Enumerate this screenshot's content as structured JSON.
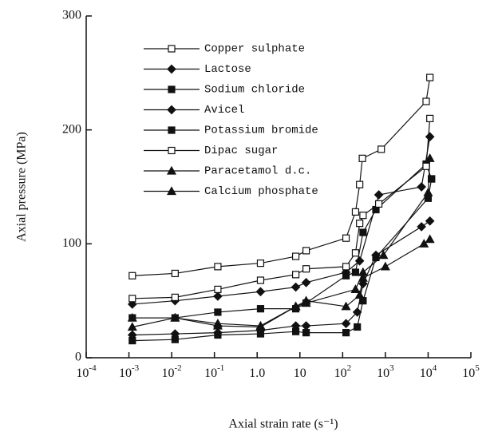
{
  "chart_data": {
    "type": "line",
    "x_label": "Axial strain rate  (s⁻¹)",
    "y_label": "Axial pressure (MPa)",
    "xscale": "log",
    "xlim": [
      0.0001,
      100000
    ],
    "xticks": [
      {
        "value": 0.0001,
        "label": "10",
        "exponent": "-4"
      },
      {
        "value": 0.001,
        "label": "10",
        "exponent": "-3"
      },
      {
        "value": 0.01,
        "label": "10",
        "exponent": "-2"
      },
      {
        "value": 0.1,
        "label": "10",
        "exponent": "-1"
      },
      {
        "value": 1,
        "label": "1.0"
      },
      10,
      {
        "value": 100,
        "label": "10",
        "exponent": "2"
      },
      {
        "value": 1000,
        "label": "10",
        "exponent": "3"
      },
      {
        "value": 10000,
        "label": "10",
        "exponent": "4"
      },
      {
        "value": 100000,
        "label": "10",
        "exponent": "5"
      }
    ],
    "ylim": [
      0,
      300
    ],
    "yticks": [
      0,
      100,
      200,
      300
    ],
    "legend": "upper left",
    "series": [
      {
        "name": "Copper sulphate",
        "color": "#111111",
        "marker": "open-square",
        "x": [
          0.0012,
          0.012,
          0.12,
          1.2,
          8,
          14,
          120,
          200,
          250,
          290,
          800,
          9000,
          11000
        ],
        "values": [
          72,
          74,
          80,
          83,
          89,
          94,
          105,
          128,
          152,
          175,
          183,
          225,
          246
        ]
      },
      {
        "name": "Lactose",
        "color": "#111111",
        "marker": "diamond",
        "x": [
          0.0012,
          0.012,
          0.12,
          1.2,
          8,
          14,
          120,
          250,
          700,
          7000,
          11000
        ],
        "values": [
          47,
          50,
          54,
          58,
          62,
          66,
          75,
          85,
          143,
          150,
          194
        ]
      },
      {
        "name": "Sodium chloride",
        "color": "#111111",
        "marker": "square",
        "x": [
          0.0012,
          0.012,
          0.12,
          1.2,
          8,
          14,
          120,
          200,
          300,
          600,
          9000,
          12000
        ],
        "values": [
          35,
          35,
          40,
          43,
          43,
          48,
          72,
          75,
          110,
          130,
          170,
          157
        ]
      },
      {
        "name": "Avicel",
        "color": "#111111",
        "marker": "diamond",
        "x": [
          0.0012,
          0.012,
          0.12,
          1.2,
          8,
          14,
          120,
          220,
          300,
          600,
          7000,
          11000
        ],
        "values": [
          20,
          21,
          22,
          24,
          28,
          28,
          30,
          40,
          65,
          90,
          115,
          120
        ]
      },
      {
        "name": "Potassium bromide",
        "color": "#111111",
        "marker": "square",
        "x": [
          0.0012,
          0.012,
          0.12,
          1.2,
          8,
          14,
          120,
          220,
          300,
          600,
          10000,
          12000
        ],
        "values": [
          15,
          16,
          20,
          21,
          23,
          22,
          22,
          27,
          50,
          88,
          140,
          157
        ]
      },
      {
        "name": "Dipac sugar",
        "color": "#111111",
        "marker": "open-square",
        "x": [
          0.0012,
          0.012,
          0.12,
          1.2,
          8,
          14,
          120,
          200,
          250,
          300,
          700,
          9000,
          11000
        ],
        "values": [
          52,
          53,
          60,
          68,
          73,
          78,
          80,
          92,
          118,
          125,
          135,
          168,
          210
        ]
      },
      {
        "name": "Paracetamol d.c.",
        "color": "#111111",
        "marker": "triangle",
        "x": [
          0.0012,
          0.012,
          0.12,
          1.2,
          8,
          14,
          120,
          250,
          300,
          1000,
          8000,
          11000
        ],
        "values": [
          27,
          35,
          28,
          27,
          45,
          50,
          45,
          55,
          70,
          80,
          100,
          104
        ]
      },
      {
        "name": "Calcium phosphate",
        "color": "#111111",
        "marker": "triangle",
        "x": [
          0.0012,
          0.012,
          0.12,
          1.2,
          8,
          14,
          200,
          300,
          900,
          10000,
          11000
        ],
        "values": [
          35,
          35,
          30,
          28,
          45,
          48,
          60,
          75,
          90,
          145,
          175
        ]
      }
    ]
  }
}
